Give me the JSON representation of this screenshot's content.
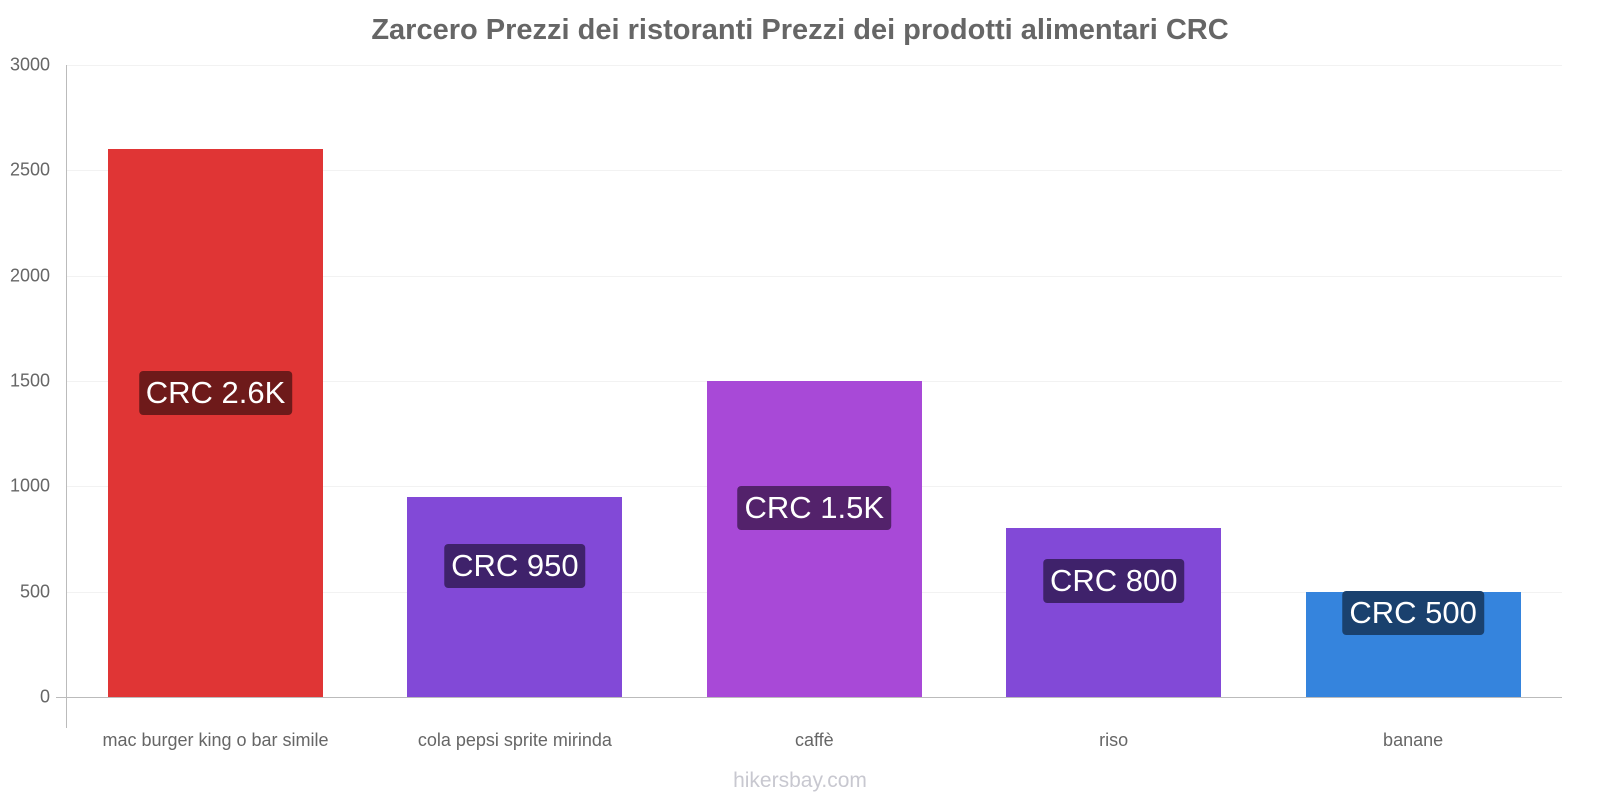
{
  "chart_data": {
    "type": "bar",
    "title": "Zarcero Prezzi dei ristoranti Prezzi dei prodotti alimentari CRC",
    "xlabel": "",
    "ylabel": "",
    "ylim": [
      0,
      3000
    ],
    "yticks": [
      "0",
      "500",
      "1000",
      "1500",
      "2000",
      "2500",
      "3000"
    ],
    "grid": true,
    "legend": "none",
    "categories": [
      "mac burger king o bar simile",
      "cola pepsi sprite mirinda",
      "caffè",
      "riso",
      "banane"
    ],
    "values": [
      2600,
      950,
      1500,
      800,
      500
    ],
    "data_labels": [
      "CRC 2.6K",
      "CRC 950",
      "CRC 1.5K",
      "CRC 800",
      "CRC 500"
    ],
    "colors": [
      "#e03535",
      "#8249d7",
      "#a849d7",
      "#8249d7",
      "#3584dd"
    ],
    "label_colors": [
      "#6e1a1a",
      "#3f226b",
      "#53226b",
      "#3f226b",
      "#1a416e"
    ]
  },
  "watermark": "hikersbay.com"
}
